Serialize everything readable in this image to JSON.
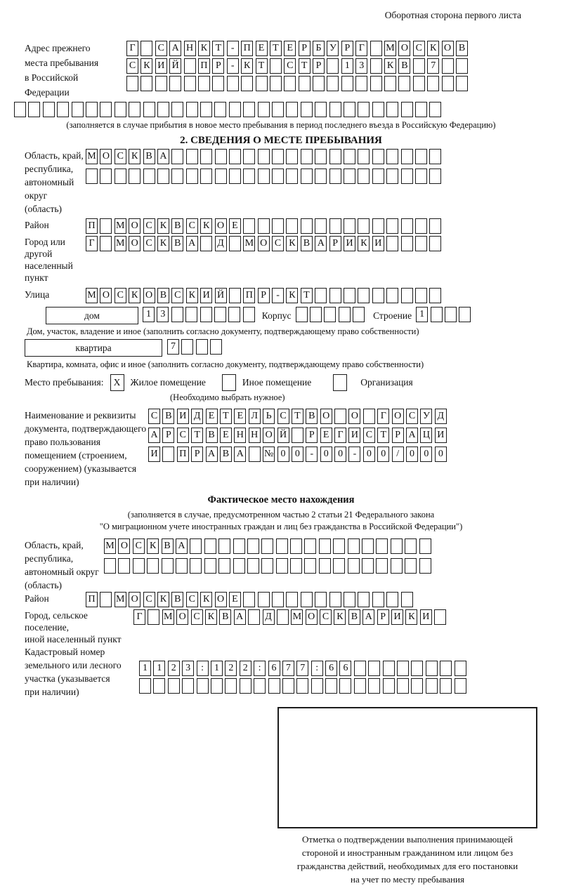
{
  "header": {
    "note": "Оборотная сторона первого листа"
  },
  "prev_address": {
    "label_lines": [
      "Адрес прежнего",
      "места пребывания",
      "в Российской",
      "Федерации"
    ],
    "row1": [
      "Г",
      "",
      "С",
      "А",
      "Н",
      "К",
      "Т",
      "-",
      "П",
      "Е",
      "Т",
      "Е",
      "Р",
      "Б",
      "У",
      "Р",
      "Г",
      "",
      "М",
      "О",
      "С",
      "К",
      "О",
      "В"
    ],
    "row2": [
      "С",
      "К",
      "И",
      "Й",
      "",
      "П",
      "Р",
      "-",
      "К",
      "Т",
      "",
      "С",
      "Т",
      "Р",
      "",
      "1",
      "3",
      "",
      "К",
      "В",
      "",
      "7",
      "",
      ""
    ],
    "row3_empty": 24,
    "full_row_empty": 30,
    "note": "(заполняется в случае прибытия в новое место пребывания в период последнего въезда в Российскую Федерацию)"
  },
  "section2": {
    "title": "2. СВЕДЕНИЯ О МЕСТЕ ПРЕБЫВАНИЯ",
    "region": {
      "label_lines": [
        "Область, край,",
        "республика,",
        "автономный",
        "округ (область)"
      ],
      "row1": [
        "М",
        "О",
        "С",
        "К",
        "В",
        "А",
        "",
        "",
        "",
        "",
        "",
        "",
        "",
        "",
        "",
        "",
        "",
        "",
        "",
        "",
        "",
        "",
        "",
        "",
        ""
      ],
      "row2_empty": 25
    },
    "district": {
      "label": "Район",
      "row": [
        "П",
        "",
        "М",
        "О",
        "С",
        "К",
        "В",
        "С",
        "К",
        "О",
        "Е",
        "",
        "",
        "",
        "",
        "",
        "",
        "",
        "",
        "",
        "",
        "",
        "",
        "",
        ""
      ]
    },
    "city": {
      "label_lines": [
        "Город или другой",
        "населенный пункт"
      ],
      "row": [
        "Г",
        "",
        "М",
        "О",
        "С",
        "К",
        "В",
        "А",
        "",
        "Д",
        "",
        "М",
        "О",
        "С",
        "К",
        "В",
        "А",
        "Р",
        "И",
        "К",
        "И",
        "",
        "",
        "",
        ""
      ]
    },
    "street": {
      "label": "Улица",
      "row": [
        "М",
        "О",
        "С",
        "К",
        "О",
        "В",
        "С",
        "К",
        "И",
        "Й",
        "",
        "П",
        "Р",
        "-",
        "К",
        "Т",
        "",
        "",
        "",
        "",
        "",
        "",
        "",
        "",
        ""
      ]
    },
    "house_row": {
      "house_label": "дом",
      "house_cells": [
        "1",
        "3",
        "",
        "",
        "",
        "",
        "",
        ""
      ],
      "korpus_label": "Корпус",
      "korpus_cells": [
        "",
        "",
        "",
        "",
        ""
      ],
      "stroenie_label": "Строение",
      "stroenie_cells": [
        "1",
        "",
        "",
        ""
      ]
    },
    "house_note": "Дом, участок, владение и иное (заполнить согласно документу, подтверждающему право собственности)",
    "apartment_row": {
      "label": "квартира",
      "cells": [
        "7",
        "",
        "",
        ""
      ]
    },
    "apartment_note": "Квартира, комната, офис и иное (заполнить согласно документу, подтверждающему право собственности)",
    "stay_type": {
      "label": "Место пребывания:",
      "options": [
        {
          "label": "Жилое помещение",
          "mark": "X"
        },
        {
          "label": "Иное помещение",
          "mark": ""
        },
        {
          "label": "Организация",
          "mark": ""
        }
      ],
      "note": "(Необходимо выбрать нужное)"
    },
    "document": {
      "label_lines": [
        "Наименование и реквизиты",
        "документа, подтверждающего",
        "право пользования",
        "помещением (строением,",
        "сооружением) (указывается",
        "при наличии)"
      ],
      "row1": [
        "С",
        "В",
        "И",
        "Д",
        "Е",
        "Т",
        "Е",
        "Л",
        "Ь",
        "С",
        "Т",
        "В",
        "О",
        "",
        "О",
        "",
        "Г",
        "О",
        "С",
        "У",
        "Д"
      ],
      "row2": [
        "А",
        "Р",
        "С",
        "Т",
        "В",
        "Е",
        "Н",
        "Н",
        "О",
        "Й",
        "",
        "Р",
        "Е",
        "Г",
        "И",
        "С",
        "Т",
        "Р",
        "А",
        "Ц",
        "И"
      ],
      "row3": [
        "И",
        "",
        "П",
        "Р",
        "А",
        "В",
        "А",
        "",
        "№",
        "0",
        "0",
        "-",
        "0",
        "0",
        "-",
        "0",
        "0",
        "/",
        "0",
        "0",
        "0"
      ]
    }
  },
  "actual_location": {
    "title": "Фактическое место нахождения",
    "note_lines": [
      "(заполняется в случае, предусмотренном частью 2 статьи 21 Федерального закона",
      "\"О миграционном учете иностранных граждан и лиц без гражданства в Российской Федерации\")"
    ],
    "region": {
      "label_lines": [
        "Область, край,",
        "республика,",
        "автономный округ",
        "(область)"
      ],
      "row1": [
        "М",
        "О",
        "С",
        "К",
        "В",
        "А",
        "",
        "",
        "",
        "",
        "",
        "",
        "",
        "",
        "",
        "",
        "",
        "",
        "",
        "",
        "",
        "",
        ""
      ],
      "row2_empty": 23
    },
    "district": {
      "label": "Район",
      "row": [
        "П",
        "",
        "М",
        "О",
        "С",
        "К",
        "В",
        "С",
        "К",
        "О",
        "Е",
        "",
        "",
        "",
        "",
        "",
        "",
        "",
        "",
        "",
        "",
        "",
        ""
      ]
    },
    "city": {
      "label_lines": [
        "Город, сельское поселение,",
        "иной населенный пункт"
      ],
      "row": [
        "Г",
        "",
        "М",
        "О",
        "С",
        "К",
        "В",
        "А",
        "",
        "Д",
        "",
        "М",
        "О",
        "С",
        "К",
        "В",
        "А",
        "Р",
        "И",
        "К",
        "И",
        ""
      ]
    },
    "cadastral": {
      "label_lines": [
        "Кадастровый номер",
        "земельного или лесного",
        "участка (указывается",
        "при наличии)"
      ],
      "row1": [
        "1",
        "1",
        "2",
        "3",
        ":",
        "1",
        "2",
        "2",
        ":",
        "6",
        "7",
        "7",
        ":",
        "6",
        "6",
        "",
        "",
        "",
        "",
        "",
        "",
        "",
        ""
      ],
      "row2_empty": 23
    }
  },
  "stamp": {
    "caption_lines": [
      "Отметка о подтверждении выполнения принимающей",
      "стороной и иностранным гражданином или лицом без",
      "гражданства действий, необходимых для его постановки",
      "на учет по месту пребывания"
    ]
  }
}
